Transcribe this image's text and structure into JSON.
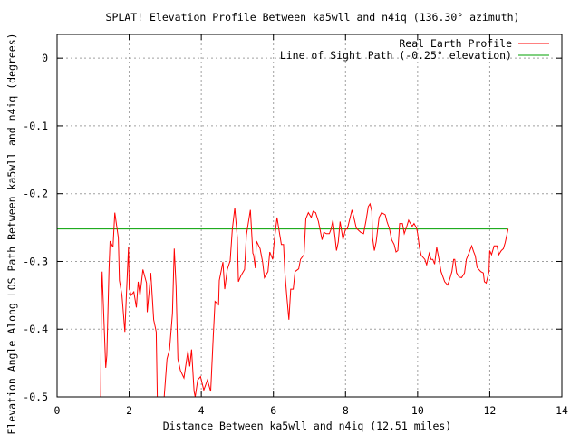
{
  "chart_data": {
    "type": "line",
    "title": "SPLAT! Elevation Profile Between ka5wll and n4iq (136.30° azimuth)",
    "xlabel": "Distance Between ka5wll and n4iq (12.51 miles)",
    "ylabel": "Elevation Angle Along LOS Path Between ka5wll and n4iq (degrees)",
    "xlim": [
      0,
      14
    ],
    "ylim": [
      -0.5,
      0.035
    ],
    "xticks": [
      0,
      2,
      4,
      6,
      8,
      10,
      12,
      14
    ],
    "xtick_labels": [
      "0",
      "2",
      "4",
      "6",
      "8",
      "10",
      "12",
      "14"
    ],
    "yticks": [
      0,
      -0.1,
      -0.2,
      -0.3,
      -0.4,
      -0.5
    ],
    "ytick_labels": [
      "0",
      "-0.1",
      "-0.2",
      "-0.3",
      "-0.4",
      "-0.5"
    ],
    "grid": true,
    "legend_position": "top-right",
    "series": [
      {
        "name": "Real Earth Profile",
        "color": "#ff0000",
        "points": [
          [
            1.2,
            -0.6
          ],
          [
            1.21,
            -0.5
          ],
          [
            1.23,
            -0.361
          ],
          [
            1.25,
            -0.315
          ],
          [
            1.35,
            -0.457
          ],
          [
            1.38,
            -0.439
          ],
          [
            1.44,
            -0.312
          ],
          [
            1.47,
            -0.27
          ],
          [
            1.55,
            -0.279
          ],
          [
            1.6,
            -0.228
          ],
          [
            1.7,
            -0.265
          ],
          [
            1.73,
            -0.328
          ],
          [
            1.8,
            -0.35
          ],
          [
            1.88,
            -0.404
          ],
          [
            1.93,
            -0.34
          ],
          [
            1.98,
            -0.279
          ],
          [
            2.0,
            -0.339
          ],
          [
            2.05,
            -0.35
          ],
          [
            2.13,
            -0.345
          ],
          [
            2.2,
            -0.368
          ],
          [
            2.25,
            -0.33
          ],
          [
            2.3,
            -0.35
          ],
          [
            2.38,
            -0.312
          ],
          [
            2.48,
            -0.332
          ],
          [
            2.5,
            -0.375
          ],
          [
            2.6,
            -0.317
          ],
          [
            2.68,
            -0.386
          ],
          [
            2.75,
            -0.404
          ],
          [
            2.78,
            -0.56
          ],
          [
            2.97,
            -0.56
          ],
          [
            3.05,
            -0.444
          ],
          [
            3.12,
            -0.43
          ],
          [
            3.2,
            -0.377
          ],
          [
            3.25,
            -0.281
          ],
          [
            3.3,
            -0.337
          ],
          [
            3.35,
            -0.444
          ],
          [
            3.42,
            -0.461
          ],
          [
            3.52,
            -0.472
          ],
          [
            3.63,
            -0.432
          ],
          [
            3.68,
            -0.455
          ],
          [
            3.73,
            -0.43
          ],
          [
            3.8,
            -0.492
          ],
          [
            3.83,
            -0.52
          ],
          [
            3.9,
            -0.475
          ],
          [
            3.98,
            -0.47
          ],
          [
            4.07,
            -0.49
          ],
          [
            4.17,
            -0.475
          ],
          [
            4.26,
            -0.492
          ],
          [
            4.33,
            -0.412
          ],
          [
            4.38,
            -0.359
          ],
          [
            4.48,
            -0.364
          ],
          [
            4.5,
            -0.328
          ],
          [
            4.6,
            -0.301
          ],
          [
            4.65,
            -0.341
          ],
          [
            4.72,
            -0.312
          ],
          [
            4.8,
            -0.299
          ],
          [
            4.86,
            -0.252
          ],
          [
            4.93,
            -0.221
          ],
          [
            5.0,
            -0.265
          ],
          [
            5.03,
            -0.33
          ],
          [
            5.1,
            -0.321
          ],
          [
            5.2,
            -0.312
          ],
          [
            5.25,
            -0.261
          ],
          [
            5.36,
            -0.224
          ],
          [
            5.43,
            -0.288
          ],
          [
            5.45,
            -0.29
          ],
          [
            5.5,
            -0.31
          ],
          [
            5.53,
            -0.27
          ],
          [
            5.63,
            -0.281
          ],
          [
            5.7,
            -0.301
          ],
          [
            5.75,
            -0.324
          ],
          [
            5.85,
            -0.315
          ],
          [
            5.9,
            -0.286
          ],
          [
            5.98,
            -0.297
          ],
          [
            6.02,
            -0.272
          ],
          [
            6.1,
            -0.235
          ],
          [
            6.15,
            -0.252
          ],
          [
            6.22,
            -0.275
          ],
          [
            6.28,
            -0.275
          ],
          [
            6.32,
            -0.317
          ],
          [
            6.37,
            -0.35
          ],
          [
            6.43,
            -0.386
          ],
          [
            6.48,
            -0.341
          ],
          [
            6.55,
            -0.341
          ],
          [
            6.6,
            -0.315
          ],
          [
            6.7,
            -0.311
          ],
          [
            6.75,
            -0.297
          ],
          [
            6.85,
            -0.29
          ],
          [
            6.9,
            -0.237
          ],
          [
            6.97,
            -0.228
          ],
          [
            7.05,
            -0.235
          ],
          [
            7.1,
            -0.226
          ],
          [
            7.17,
            -0.228
          ],
          [
            7.25,
            -0.241
          ],
          [
            7.35,
            -0.268
          ],
          [
            7.4,
            -0.257
          ],
          [
            7.47,
            -0.259
          ],
          [
            7.55,
            -0.259
          ],
          [
            7.6,
            -0.252
          ],
          [
            7.65,
            -0.239
          ],
          [
            7.7,
            -0.261
          ],
          [
            7.75,
            -0.284
          ],
          [
            7.8,
            -0.271
          ],
          [
            7.85,
            -0.241
          ],
          [
            7.93,
            -0.268
          ],
          [
            8.0,
            -0.252
          ],
          [
            8.05,
            -0.252
          ],
          [
            8.1,
            -0.241
          ],
          [
            8.18,
            -0.224
          ],
          [
            8.25,
            -0.239
          ],
          [
            8.3,
            -0.251
          ],
          [
            8.42,
            -0.257
          ],
          [
            8.5,
            -0.259
          ],
          [
            8.57,
            -0.239
          ],
          [
            8.63,
            -0.219
          ],
          [
            8.68,
            -0.215
          ],
          [
            8.73,
            -0.226
          ],
          [
            8.75,
            -0.265
          ],
          [
            8.8,
            -0.284
          ],
          [
            8.85,
            -0.271
          ],
          [
            8.93,
            -0.235
          ],
          [
            9.0,
            -0.228
          ],
          [
            9.1,
            -0.231
          ],
          [
            9.15,
            -0.241
          ],
          [
            9.22,
            -0.252
          ],
          [
            9.28,
            -0.268
          ],
          [
            9.35,
            -0.275
          ],
          [
            9.4,
            -0.286
          ],
          [
            9.45,
            -0.284
          ],
          [
            9.5,
            -0.244
          ],
          [
            9.58,
            -0.244
          ],
          [
            9.63,
            -0.259
          ],
          [
            9.7,
            -0.248
          ],
          [
            9.75,
            -0.239
          ],
          [
            9.8,
            -0.244
          ],
          [
            9.85,
            -0.248
          ],
          [
            9.9,
            -0.244
          ],
          [
            9.97,
            -0.251
          ],
          [
            10.0,
            -0.259
          ],
          [
            10.05,
            -0.279
          ],
          [
            10.1,
            -0.291
          ],
          [
            10.2,
            -0.297
          ],
          [
            10.25,
            -0.305
          ],
          [
            10.32,
            -0.288
          ],
          [
            10.37,
            -0.297
          ],
          [
            10.42,
            -0.297
          ],
          [
            10.47,
            -0.304
          ],
          [
            10.53,
            -0.279
          ],
          [
            10.6,
            -0.299
          ],
          [
            10.65,
            -0.315
          ],
          [
            10.75,
            -0.33
          ],
          [
            10.83,
            -0.335
          ],
          [
            10.88,
            -0.328
          ],
          [
            10.95,
            -0.315
          ],
          [
            11.0,
            -0.297
          ],
          [
            11.03,
            -0.297
          ],
          [
            11.08,
            -0.317
          ],
          [
            11.15,
            -0.323
          ],
          [
            11.22,
            -0.324
          ],
          [
            11.3,
            -0.317
          ],
          [
            11.35,
            -0.297
          ],
          [
            11.42,
            -0.288
          ],
          [
            11.5,
            -0.277
          ],
          [
            11.55,
            -0.285
          ],
          [
            11.6,
            -0.292
          ],
          [
            11.65,
            -0.309
          ],
          [
            11.75,
            -0.315
          ],
          [
            11.82,
            -0.317
          ],
          [
            11.85,
            -0.33
          ],
          [
            11.9,
            -0.332
          ],
          [
            11.98,
            -0.315
          ],
          [
            12.0,
            -0.284
          ],
          [
            12.05,
            -0.29
          ],
          [
            12.12,
            -0.277
          ],
          [
            12.2,
            -0.277
          ],
          [
            12.25,
            -0.29
          ],
          [
            12.32,
            -0.284
          ],
          [
            12.38,
            -0.281
          ],
          [
            12.43,
            -0.272
          ],
          [
            12.51,
            -0.252
          ]
        ]
      },
      {
        "name": "Line of Sight Path (-0.25° elevation)",
        "color": "#00a000",
        "points": [
          [
            0,
            -0.252
          ],
          [
            12.51,
            -0.252
          ]
        ]
      }
    ]
  }
}
